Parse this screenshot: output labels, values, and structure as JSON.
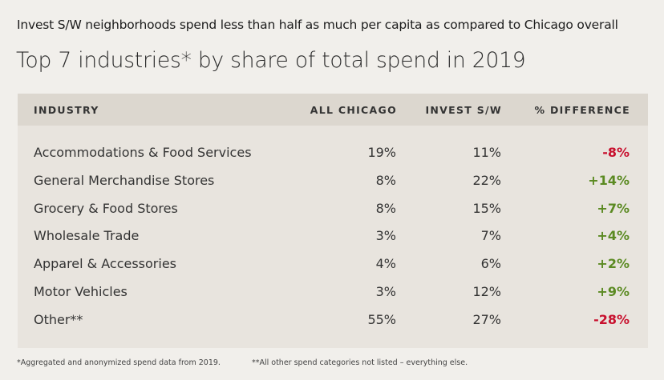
{
  "headline": "Invest S/W neighborhoods spend less than half as much per capita as compared to Chicago overall",
  "title": "Top 7 industries* by share of total spend in 2019",
  "columns": {
    "industry": "INDUSTRY",
    "all_chicago": "ALL CHICAGO",
    "invest_sw": "INVEST S/W",
    "pct_diff": "% DIFFERENCE"
  },
  "chart_data": {
    "type": "table",
    "title": "Top 7 industries* by share of total spend in 2019",
    "columns": [
      "INDUSTRY",
      "ALL CHICAGO",
      "INVEST S/W",
      "% DIFFERENCE"
    ],
    "rows": [
      {
        "industry": "Accommodations & Food Services",
        "all_chicago": "19%",
        "invest_sw": "11%",
        "pct_diff": "-8%",
        "sign": "neg"
      },
      {
        "industry": "General Merchandise Stores",
        "all_chicago": "8%",
        "invest_sw": "22%",
        "pct_diff": "+14%",
        "sign": "pos"
      },
      {
        "industry": "Grocery & Food Stores",
        "all_chicago": "8%",
        "invest_sw": "15%",
        "pct_diff": "+7%",
        "sign": "pos"
      },
      {
        "industry": "Wholesale Trade",
        "all_chicago": "3%",
        "invest_sw": "7%",
        "pct_diff": "+4%",
        "sign": "pos"
      },
      {
        "industry": "Apparel & Accessories",
        "all_chicago": "4%",
        "invest_sw": "6%",
        "pct_diff": "+2%",
        "sign": "pos"
      },
      {
        "industry": "Motor Vehicles",
        "all_chicago": "3%",
        "invest_sw": "12%",
        "pct_diff": "+9%",
        "sign": "pos"
      },
      {
        "industry": "Other**",
        "all_chicago": "55%",
        "invest_sw": "27%",
        "pct_diff": "-28%",
        "sign": "neg"
      }
    ]
  },
  "footnotes": {
    "one": "*Aggregated and anonymized spend data from 2019.",
    "two": "**All other spend categories not listed – everything else."
  },
  "colors": {
    "negative": "#c8102e",
    "positive": "#5b8a22",
    "header_bg": "#dcd7cf",
    "table_bg": "#e8e4de",
    "page_bg": "#f1efeb"
  }
}
